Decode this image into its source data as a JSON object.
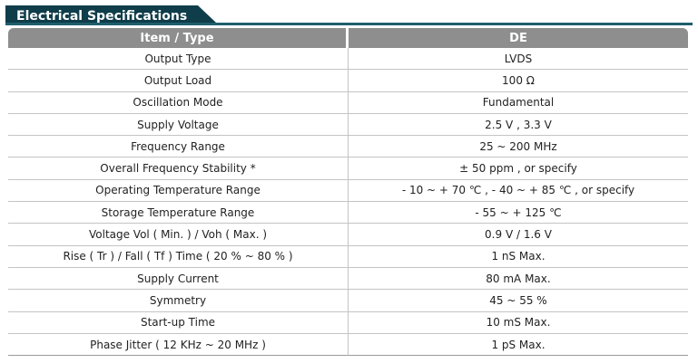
{
  "section": {
    "title": "Electrical Specifications"
  },
  "table": {
    "headers": {
      "item": "Item / Type",
      "value": "DE"
    },
    "rows": [
      {
        "item": "Output Type",
        "value": "LVDS"
      },
      {
        "item": "Output Load",
        "value": "100 Ω"
      },
      {
        "item": "Oscillation Mode",
        "value": "Fundamental"
      },
      {
        "item": "Supply Voltage",
        "value": "2.5 V , 3.3 V"
      },
      {
        "item": "Frequency Range",
        "value": "25 ~ 200 MHz"
      },
      {
        "item": "Overall Frequency Stability *",
        "value": "± 50 ppm , or specify"
      },
      {
        "item": "Operating Temperature Range",
        "value": "- 10 ~ + 70 ℃ , - 40 ~ + 85 ℃ , or specify"
      },
      {
        "item": "Storage Temperature Range",
        "value": "- 55 ~ + 125 ℃"
      },
      {
        "item": "Voltage Vol ( Min. ) / Voh ( Max. )",
        "value": "0.9 V / 1.6 V"
      },
      {
        "item": "Rise ( Tr ) / Fall ( Tf ) Time ( 20 % ~ 80 % )",
        "value": "1 nS Max."
      },
      {
        "item": "Supply Current",
        "value": "80 mA Max."
      },
      {
        "item": "Symmetry",
        "value": "45 ~ 55 %"
      },
      {
        "item": "Start-up Time",
        "value": "10 mS Max."
      },
      {
        "item": "Phase Jitter ( 12 KHz ~ 20 MHz )",
        "value": "1 pS Max."
      }
    ]
  },
  "colors": {
    "title_band": "#0f3d4a",
    "title_underline": "#1f5f6e",
    "header_bg": "#8e8e8e",
    "row_divider": "#c4c4c4"
  }
}
